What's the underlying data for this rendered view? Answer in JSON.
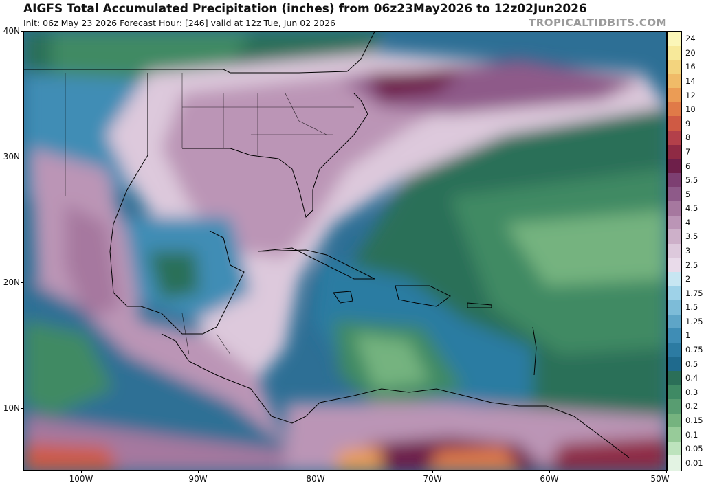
{
  "header": {
    "title": "AIGFS Total Accumulated Precipitation (inches) from 06z23May2026 to 12z02Jun2026",
    "subtitle": "Init: 06z May 23 2026   Forecast Hour: [246]   valid at 12z Tue, Jun 02 2026",
    "brand": "TROPICALTIDBITS.COM"
  },
  "map": {
    "lat_labels": [
      "40N",
      "30N",
      "20N",
      "10N"
    ],
    "lon_labels": [
      "100W",
      "90W",
      "80W",
      "70W",
      "60W",
      "50W"
    ]
  },
  "colorbar": {
    "labels": [
      "24",
      "20",
      "16",
      "14",
      "12",
      "10",
      "9",
      "8",
      "7",
      "6",
      "5.5",
      "5",
      "4.5",
      "4",
      "3.5",
      "3",
      "2.5",
      "2",
      "1.75",
      "1.5",
      "1.25",
      "1",
      "0.75",
      "0.5",
      "0.4",
      "0.3",
      "0.2",
      "0.15",
      "0.1",
      "0.05",
      "0.01"
    ],
    "colors": [
      "#fbf6b8",
      "#f7e99a",
      "#f3d47e",
      "#f0bb68",
      "#eb9c55",
      "#e07a48",
      "#cf5a44",
      "#b3404a",
      "#8f2a44",
      "#6e1f4a",
      "#7d3f72",
      "#8e5a89",
      "#a6789f",
      "#bb95b6",
      "#cdb0c9",
      "#ddc9dc",
      "#e9dbea",
      "#c7e6f2",
      "#9ed2e8",
      "#7dbcd8",
      "#5ea5c7",
      "#3f8db5",
      "#2c7ba2",
      "#1f6a8d",
      "#2b6f58",
      "#3f8a64",
      "#589d71",
      "#75b37f",
      "#97cb99",
      "#bde3bd",
      "#e3f3e3"
    ]
  }
}
